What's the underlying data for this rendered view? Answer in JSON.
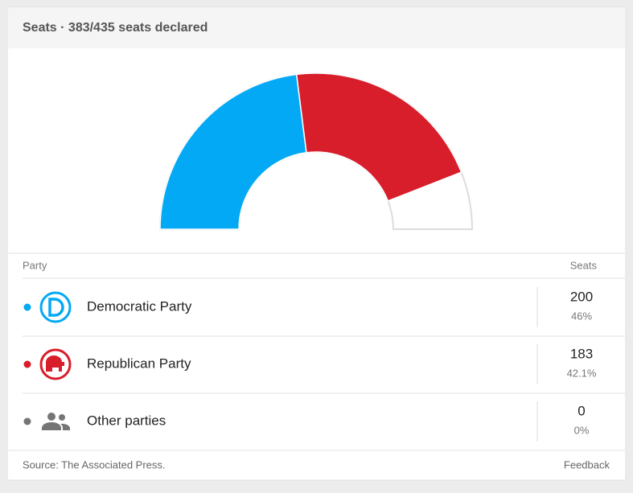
{
  "header": {
    "title": "Seats · 383/435 seats declared"
  },
  "chart_data": {
    "type": "half-donut",
    "categories": [
      "Democratic Party",
      "Republican Party",
      "Other parties"
    ],
    "colors": [
      "#03a9f4",
      "#d81e2b",
      "#757575"
    ],
    "values": [
      46,
      42.1,
      0
    ],
    "value_labels": [
      "46%",
      "42.1%",
      "0%"
    ],
    "seats": [
      200,
      183,
      0
    ]
  },
  "table": {
    "party_header": "Party",
    "seats_header": "Seats"
  },
  "footer": {
    "source": "Source: The Associated Press.",
    "feedback": "Feedback"
  }
}
